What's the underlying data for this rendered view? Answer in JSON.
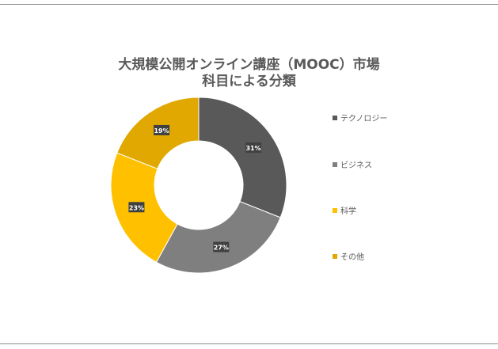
{
  "chart_data": {
    "type": "pie",
    "title": "大規模公開オンライン講座（MOOC）市場",
    "subtitle": "科目による分類",
    "categories": [
      "テクノロジー",
      "ビジネス",
      "科学",
      "その他"
    ],
    "values": [
      31,
      27,
      23,
      19
    ],
    "value_labels": [
      "31%",
      "27%",
      "23%",
      "19%"
    ],
    "colors": [
      "#595959",
      "#7f7f7f",
      "#ffc000",
      "#e0a800"
    ],
    "donut": true,
    "legend_position": "right"
  }
}
